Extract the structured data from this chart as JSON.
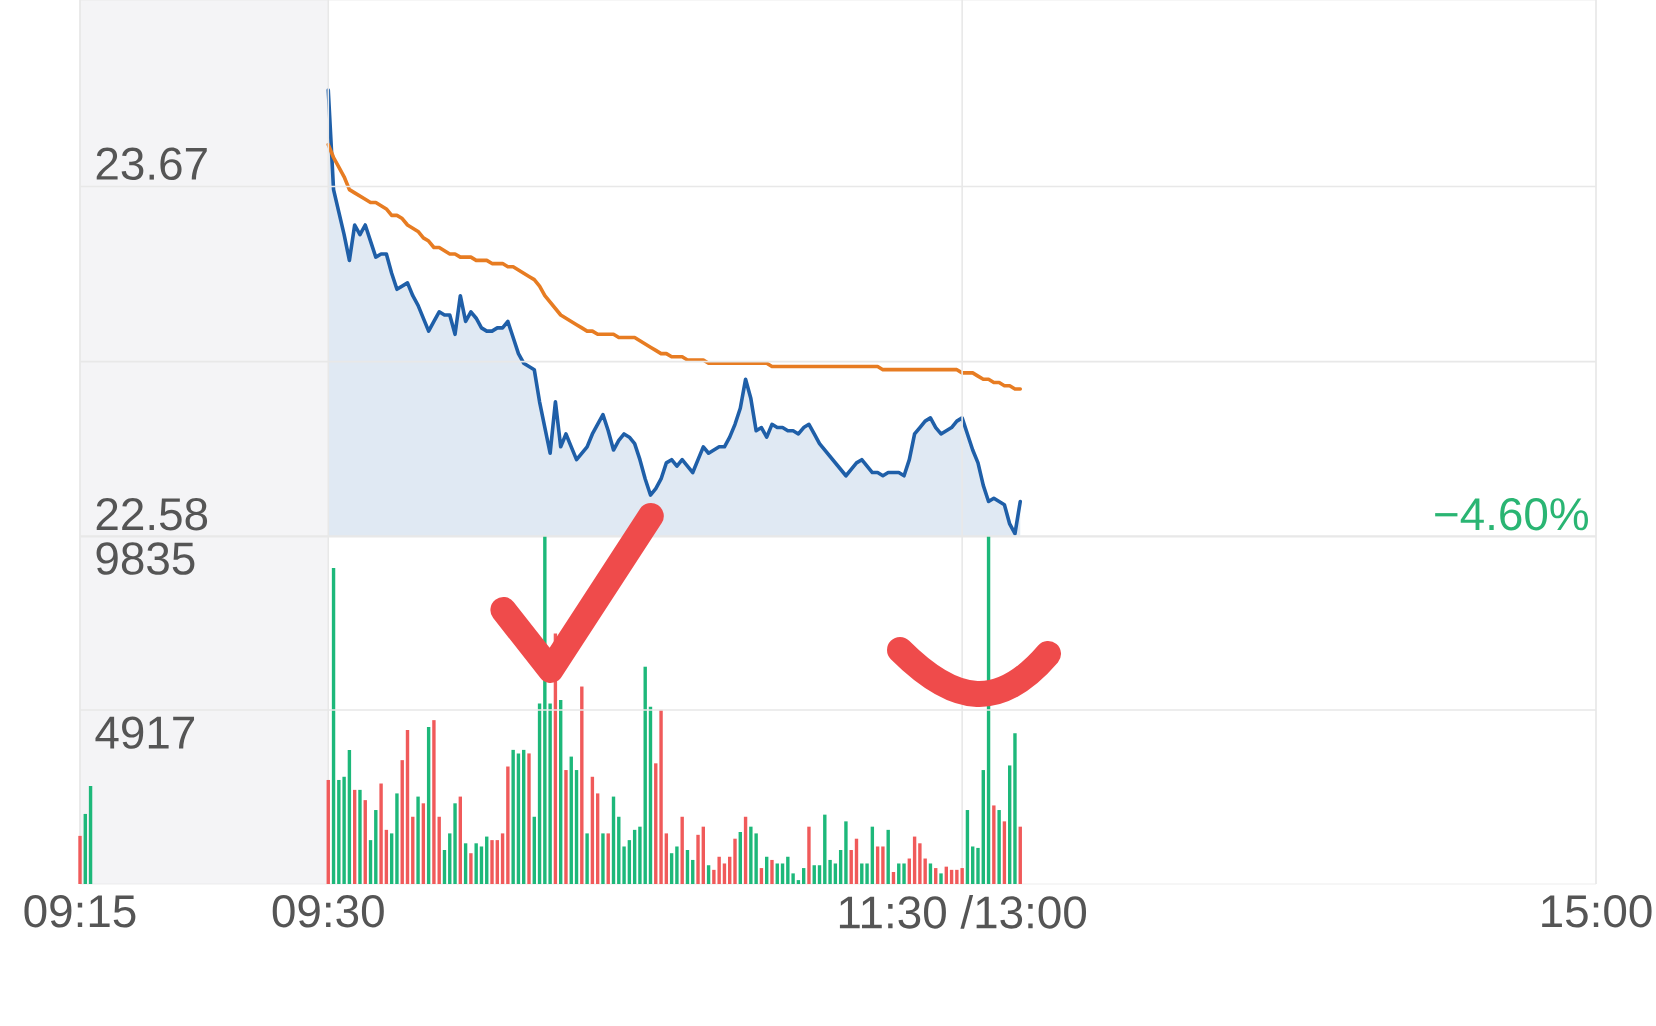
{
  "chart_data": {
    "type": "line",
    "grid": true,
    "categories": [
      "09:15",
      null,
      null,
      null,
      null,
      null,
      null,
      null,
      null,
      null,
      null,
      null,
      null,
      null,
      null,
      null,
      null,
      null,
      null,
      null,
      null,
      null,
      null,
      null,
      null,
      null,
      null,
      null,
      null,
      null,
      null,
      null,
      null,
      null,
      null,
      null,
      null,
      null,
      null,
      null,
      null,
      null,
      null,
      null,
      null,
      null,
      null,
      "09:30",
      null,
      null,
      null,
      null,
      null,
      null,
      null,
      null,
      null,
      null,
      null,
      null,
      null,
      null,
      null,
      null,
      null,
      null,
      null,
      null,
      null,
      null,
      null,
      null,
      null,
      null,
      null,
      null,
      null,
      null,
      null,
      null,
      null,
      null,
      null,
      null,
      null,
      null,
      null,
      null,
      null,
      null,
      null,
      null,
      null,
      null,
      null,
      null,
      null,
      null,
      null,
      null,
      null,
      null,
      null,
      null,
      null,
      null,
      null,
      null,
      null,
      null,
      null,
      null,
      null,
      null,
      null,
      null,
      null,
      null,
      null,
      null,
      null,
      null,
      null,
      null,
      null,
      null,
      null,
      null,
      null,
      null,
      null,
      null,
      null,
      null,
      null,
      null,
      null,
      null,
      null,
      null,
      null,
      null,
      null,
      null,
      null,
      null,
      null,
      null,
      null,
      null,
      null,
      null,
      null,
      null,
      null,
      null,
      null,
      null,
      null,
      null,
      null,
      null,
      null,
      null,
      null,
      null,
      null,
      "11:30 /13:00",
      null,
      null,
      null,
      null,
      null,
      null,
      null,
      null,
      null,
      null,
      null,
      null,
      null,
      null,
      null,
      null,
      null,
      null,
      null,
      null,
      null,
      null,
      null,
      null,
      null,
      null,
      null,
      null,
      null,
      null,
      null,
      null,
      null,
      null,
      null,
      null,
      null,
      null,
      null,
      null,
      null,
      null,
      null,
      null,
      null,
      null,
      null,
      null,
      null,
      null,
      null,
      null,
      null,
      null,
      null,
      null,
      null,
      null,
      null,
      null,
      null,
      null,
      null,
      null,
      null,
      null,
      null,
      null,
      null,
      null,
      null,
      null,
      null,
      null,
      null,
      null,
      null,
      null,
      null,
      null,
      null,
      null,
      null,
      null,
      null,
      null,
      null,
      null,
      null,
      null,
      null,
      null,
      null,
      null,
      null,
      null,
      null,
      null,
      null,
      null,
      null,
      null,
      null,
      null,
      null,
      null,
      null,
      null,
      null,
      null,
      null,
      null,
      null,
      null,
      null,
      null,
      null,
      null,
      null,
      "15:00"
    ],
    "ylim": [
      21.5,
      24.25
    ],
    "yticks": [
      22.58,
      {
        "value": 23.125,
        "label": null
      },
      23.67
    ],
    "y2lim": [
      0,
      24980
    ],
    "y2ticks": [
      4917,
      9835
    ],
    "bands": [
      {
        "axis": "x",
        "from": "09:15",
        "to": "09:30",
        "color": "#f4f4f6"
      }
    ],
    "annotations": [
      "−4.60%"
    ],
    "series": [
      {
        "type": "area",
        "color": "#1f5fa8",
        "values": [
          null,
          null,
          null,
          null,
          null,
          null,
          null,
          null,
          null,
          null,
          null,
          null,
          null,
          null,
          null,
          null,
          null,
          null,
          null,
          null,
          null,
          null,
          null,
          null,
          null,
          null,
          null,
          null,
          null,
          null,
          null,
          null,
          null,
          null,
          null,
          null,
          null,
          null,
          null,
          null,
          null,
          null,
          null,
          null,
          null,
          null,
          null,
          23.97,
          23.66,
          23.59,
          23.52,
          23.44,
          23.55,
          23.52,
          23.55,
          23.5,
          23.45,
          23.46,
          23.46,
          23.4,
          23.35,
          23.36,
          23.37,
          23.33,
          23.3,
          23.26,
          23.22,
          23.25,
          23.28,
          23.27,
          23.27,
          23.21,
          23.33,
          23.25,
          23.28,
          23.26,
          23.23,
          23.22,
          23.22,
          23.23,
          23.23,
          23.25,
          23.2,
          23.15,
          23.12,
          23.11,
          23.1,
          23.0,
          22.92,
          22.84,
          23.0,
          22.86,
          22.9,
          22.86,
          22.82,
          22.84,
          22.86,
          22.9,
          22.93,
          22.96,
          22.91,
          22.85,
          22.88,
          22.9,
          22.89,
          22.87,
          22.82,
          22.76,
          22.71,
          22.73,
          22.76,
          22.81,
          22.82,
          22.8,
          22.82,
          22.8,
          22.78,
          22.82,
          22.86,
          22.84,
          22.85,
          22.86,
          22.86,
          22.89,
          22.93,
          22.98,
          23.07,
          23.01,
          22.91,
          22.92,
          22.89,
          22.93,
          22.92,
          22.92,
          22.91,
          22.91,
          22.9,
          22.92,
          22.93,
          22.9,
          22.87,
          22.85,
          22.83,
          22.81,
          22.79,
          22.77,
          22.79,
          22.81,
          22.82,
          22.8,
          22.78,
          22.78,
          22.77,
          22.78,
          22.78,
          22.78,
          22.77,
          22.82,
          22.9,
          22.92,
          22.94,
          22.95,
          22.92,
          22.9,
          22.91,
          22.92,
          22.94,
          22.95,
          22.9,
          22.85,
          22.81,
          22.74,
          22.69,
          22.7,
          22.69,
          22.68,
          22.62,
          22.59,
          22.69,
          null,
          null,
          null,
          null,
          null,
          null,
          null,
          null,
          null,
          null,
          null,
          null,
          null,
          null,
          null,
          null,
          null,
          null,
          null,
          null,
          null,
          null,
          null,
          null,
          null,
          null,
          null,
          null,
          null,
          null,
          null,
          null,
          null,
          null,
          null,
          null,
          null,
          null,
          null,
          null,
          null,
          null,
          null,
          null,
          null,
          null,
          null,
          null,
          null,
          null,
          null,
          null,
          null,
          null,
          null,
          null,
          null,
          null,
          null,
          null,
          null,
          null,
          null,
          null,
          null,
          null,
          null,
          null,
          null,
          null,
          null,
          null,
          null,
          null,
          null,
          null,
          null,
          null,
          null,
          null,
          null,
          null,
          null,
          null,
          null,
          null,
          null,
          null,
          null,
          null,
          null,
          null,
          null,
          null,
          null,
          null,
          null,
          null,
          null,
          null,
          null,
          null,
          null,
          null,
          null,
          null,
          null,
          null,
          null
        ]
      },
      {
        "color": "#e77c22",
        "values": [
          null,
          null,
          null,
          null,
          null,
          null,
          null,
          null,
          null,
          null,
          null,
          null,
          null,
          null,
          null,
          null,
          null,
          null,
          null,
          null,
          null,
          null,
          null,
          null,
          null,
          null,
          null,
          null,
          null,
          null,
          null,
          null,
          null,
          null,
          null,
          null,
          null,
          null,
          null,
          null,
          null,
          null,
          null,
          null,
          null,
          null,
          null,
          23.8,
          23.76,
          23.73,
          23.7,
          23.66,
          23.65,
          23.64,
          23.63,
          23.62,
          23.62,
          23.61,
          23.6,
          23.58,
          23.58,
          23.57,
          23.55,
          23.54,
          23.53,
          23.51,
          23.5,
          23.48,
          23.48,
          23.47,
          23.46,
          23.46,
          23.45,
          23.45,
          23.45,
          23.44,
          23.44,
          23.44,
          23.43,
          23.43,
          23.43,
          23.42,
          23.42,
          23.41,
          23.4,
          23.39,
          23.38,
          23.36,
          23.33,
          23.31,
          23.29,
          23.27,
          23.26,
          23.25,
          23.24,
          23.23,
          23.22,
          23.22,
          23.21,
          23.21,
          23.21,
          23.21,
          23.2,
          23.2,
          23.2,
          23.2,
          23.19,
          23.18,
          23.17,
          23.16,
          23.15,
          23.15,
          23.14,
          23.14,
          23.14,
          23.13,
          23.13,
          23.13,
          23.13,
          23.12,
          23.12,
          23.12,
          23.12,
          23.12,
          23.12,
          23.12,
          23.12,
          23.12,
          23.12,
          23.12,
          23.12,
          23.11,
          23.11,
          23.11,
          23.11,
          23.11,
          23.11,
          23.11,
          23.11,
          23.11,
          23.11,
          23.11,
          23.11,
          23.11,
          23.11,
          23.11,
          23.11,
          23.11,
          23.11,
          23.11,
          23.11,
          23.11,
          23.1,
          23.1,
          23.1,
          23.1,
          23.1,
          23.1,
          23.1,
          23.1,
          23.1,
          23.1,
          23.1,
          23.1,
          23.1,
          23.1,
          23.1,
          23.09,
          23.09,
          23.09,
          23.08,
          23.07,
          23.07,
          23.06,
          23.06,
          23.05,
          23.05,
          23.04,
          23.04,
          null,
          null,
          null,
          null,
          null,
          null,
          null,
          null,
          null,
          null,
          null,
          null,
          null,
          null,
          null,
          null,
          null,
          null,
          null,
          null,
          null,
          null,
          null,
          null,
          null,
          null,
          null,
          null,
          null,
          null,
          null,
          null,
          null,
          null,
          null,
          null,
          null,
          null,
          null,
          null,
          null,
          null,
          null,
          null,
          null,
          null,
          null,
          null,
          null,
          null,
          null,
          null,
          null,
          null,
          null,
          null,
          null,
          null,
          null,
          null,
          null,
          null,
          null,
          null,
          null,
          null,
          null,
          null,
          null,
          null,
          null,
          null,
          null,
          null,
          null,
          null,
          null,
          null,
          null,
          null,
          null,
          null,
          null,
          null,
          null,
          null,
          null,
          null,
          null,
          null,
          null,
          null,
          null,
          null,
          null,
          null,
          null,
          null,
          null,
          null,
          null,
          null,
          null,
          null,
          null,
          null,
          null,
          null,
          null
        ]
      },
      {
        "type": "bar",
        "axis": "y2",
        "values": [
          1360,
          1980,
          2770,
          null,
          null,
          null,
          null,
          null,
          null,
          null,
          null,
          null,
          null,
          null,
          null,
          null,
          null,
          null,
          null,
          null,
          null,
          null,
          null,
          null,
          null,
          null,
          null,
          null,
          null,
          null,
          null,
          null,
          null,
          null,
          null,
          null,
          null,
          null,
          null,
          null,
          null,
          null,
          null,
          null,
          null,
          null,
          null,
          2940,
          8930,
          2940,
          3030,
          3790,
          2660,
          2660,
          2370,
          1240,
          2090,
          2840,
          1530,
          1430,
          2560,
          3500,
          4350,
          1900,
          2470,
          2280,
          4440,
          4630,
          1900,
          960,
          1430,
          2280,
          2470,
          1150,
          870,
          1150,
          1060,
          1340,
          1240,
          1240,
          1430,
          3320,
          3790,
          3690,
          3790,
          3690,
          1900,
          5100,
          9835,
          5100,
          7080,
          5200,
          3220,
          3600,
          3220,
          5580,
          1430,
          3030,
          2560,
          1430,
          1430,
          2470,
          1900,
          1060,
          1240,
          1530,
          1620,
          6140,
          5010,
          3410,
          4920,
          1430,
          870,
          1060,
          1900,
          960,
          680,
          1390,
          1620,
          530,
          400,
          770,
          580,
          770,
          1280,
          1470,
          1900,
          1620,
          1430,
          450,
          770,
          680,
          580,
          580,
          770,
          300,
          110,
          450,
          1620,
          530,
          530,
          1960,
          680,
          580,
          960,
          1770,
          960,
          1280,
          580,
          580,
          1620,
          1060,
          1060,
          1530,
          340,
          580,
          580,
          720,
          1340,
          1150,
          720,
          580,
          450,
          300,
          490,
          400,
          400,
          450,
          2090,
          1060,
          1020,
          3220,
          9835,
          2220,
          2090,
          1770,
          3350,
          4260,
          1620,
          null,
          null,
          null,
          null,
          null,
          null,
          null,
          null,
          null,
          null,
          null,
          null,
          null,
          null,
          null,
          null,
          null,
          null,
          null,
          null,
          null,
          null,
          null,
          null,
          null,
          null,
          null,
          null,
          null,
          null,
          null,
          null,
          null,
          null,
          null,
          null,
          null,
          null,
          null,
          null,
          null,
          null,
          null,
          null,
          null,
          null,
          null,
          null,
          null,
          null,
          null,
          null,
          null,
          null,
          null,
          null,
          null,
          null,
          null,
          null,
          null,
          null,
          null,
          null,
          null,
          null,
          null,
          null,
          null,
          null,
          null,
          null,
          null,
          null,
          null,
          null,
          null,
          null,
          null,
          null,
          null,
          null,
          null,
          null,
          null,
          null,
          null,
          null,
          null,
          null,
          null,
          null,
          null,
          null,
          null,
          null,
          null,
          null,
          null,
          null,
          null,
          null,
          null,
          null,
          null,
          null,
          null,
          null,
          null
        ],
        "colors": [
          "#f05a5a",
          "#1db87a",
          "#1db87a",
          null,
          null,
          null,
          null,
          null,
          null,
          null,
          null,
          null,
          null,
          null,
          null,
          null,
          null,
          null,
          null,
          null,
          null,
          null,
          null,
          null,
          null,
          null,
          null,
          null,
          null,
          null,
          null,
          null,
          null,
          null,
          null,
          null,
          null,
          null,
          null,
          null,
          null,
          null,
          null,
          null,
          null,
          null,
          null,
          "#f05a5a",
          "#1db87a",
          "#1db87a",
          "#1db87a",
          "#1db87a",
          "#f05a5a",
          "#1db87a",
          "#f05a5a",
          "#1db87a",
          "#1db87a",
          "#f05a5a",
          "#f05a5a",
          "#1db87a",
          "#1db87a",
          "#f05a5a",
          "#f05a5a",
          "#f05a5a",
          "#1db87a",
          "#f05a5a",
          "#1db87a",
          "#f05a5a",
          "#f05a5a",
          "#1db87a",
          "#1db87a",
          "#1db87a",
          "#f05a5a",
          "#1db87a",
          "#f05a5a",
          "#1db87a",
          "#1db87a",
          "#1db87a",
          "#f05a5a",
          "#f05a5a",
          "#f05a5a",
          "#f05a5a",
          "#1db87a",
          "#1db87a",
          "#1db87a",
          "#f05a5a",
          "#1db87a",
          "#1db87a",
          "#1db87a",
          "#1db87a",
          "#f05a5a",
          "#1db87a",
          "#f05a5a",
          "#1db87a",
          "#1db87a",
          "#f05a5a",
          "#1db87a",
          "#f05a5a",
          "#f05a5a",
          "#1db87a",
          "#f05a5a",
          "#1db87a",
          "#1db87a",
          "#1db87a",
          "#1db87a",
          "#1db87a",
          "#1db87a",
          "#1db87a",
          "#1db87a",
          "#f05a5a",
          "#f05a5a",
          "#f05a5a",
          "#1db87a",
          "#1db87a",
          "#f05a5a",
          "#1db87a",
          "#1db87a",
          "#f05a5a",
          "#f05a5a",
          "#1db87a",
          "#f05a5a",
          "#f05a5a",
          "#f05a5a",
          "#f05a5a",
          "#f05a5a",
          "#1db87a",
          "#f05a5a",
          "#1db87a",
          "#1db87a",
          "#f05a5a",
          "#1db87a",
          "#f05a5a",
          "#1db87a",
          "#1db87a",
          "#1db87a",
          "#1db87a",
          "#1db87a",
          "#1db87a",
          "#f05a5a",
          "#1db87a",
          "#1db87a",
          "#1db87a",
          "#1db87a",
          "#1db87a",
          "#1db87a",
          "#1db87a",
          "#f05a5a",
          "#f05a5a",
          "#1db87a",
          "#1db87a",
          "#1db87a",
          "#f05a5a",
          "#f05a5a",
          "#1db87a",
          "#f05a5a",
          "#1db87a",
          "#1db87a",
          "#f05a5a",
          "#f05a5a",
          "#f05a5a",
          "#f05a5a",
          "#1db87a",
          "#f05a5a",
          "#1db87a",
          "#f05a5a",
          "#f05a5a",
          "#f05a5a",
          "#f05a5a",
          "#1db87a",
          "#1db87a",
          "#1db87a",
          "#1db87a",
          "#1db87a",
          "#f05a5a",
          "#1db87a",
          "#f05a5a",
          "#1db87a",
          "#1db87a",
          "#f05a5a",
          null,
          null,
          null,
          null,
          null,
          null,
          null,
          null,
          null,
          null,
          null,
          null,
          null,
          null,
          null,
          null,
          null,
          null,
          null,
          null,
          null,
          null,
          null,
          null,
          null,
          null,
          null,
          null,
          null,
          null,
          null,
          null,
          null,
          null,
          null,
          null,
          null,
          null,
          null,
          null,
          null,
          null,
          null,
          null,
          null,
          null,
          null,
          null,
          null,
          null,
          null,
          null,
          null,
          null,
          null,
          null,
          null,
          null,
          null,
          null,
          null,
          null,
          null,
          null,
          null,
          null,
          null,
          null,
          null,
          null,
          null,
          null,
          null,
          null,
          null,
          null,
          null,
          null,
          null,
          null,
          null,
          null,
          null,
          null,
          null,
          null,
          null,
          null,
          null,
          null,
          null,
          null,
          null,
          null,
          null,
          null,
          null,
          null,
          null,
          null,
          null,
          null,
          null,
          null,
          null,
          null,
          null,
          null,
          null
        ]
      }
    ]
  }
}
